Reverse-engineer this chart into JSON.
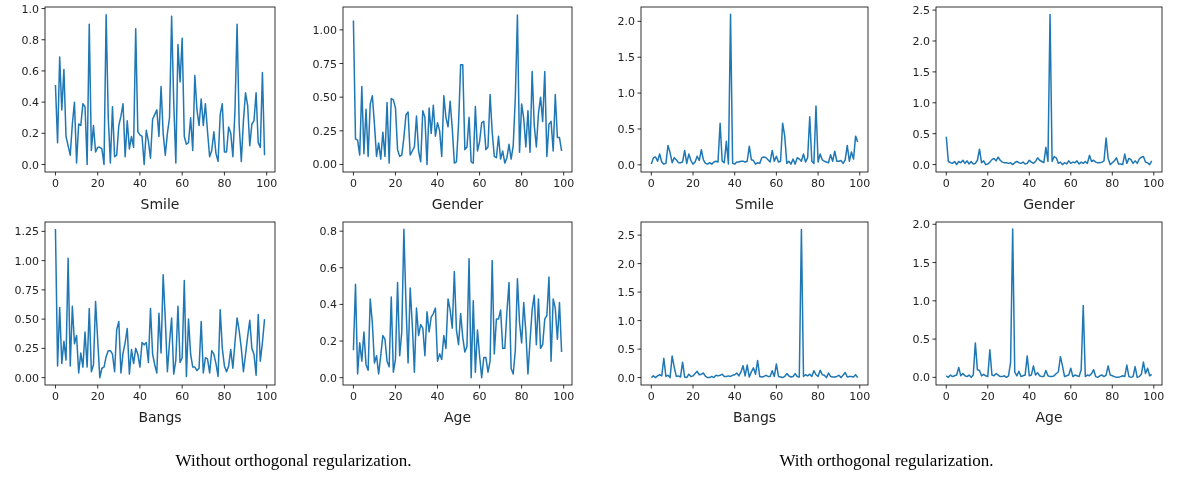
{
  "chart_data": [
    {
      "type": "line",
      "xlabel": "Smile",
      "annotations": [
        "Without orthogonal regularization."
      ],
      "xlim": [
        -4.95,
        103.95
      ],
      "xticks": [
        0,
        20,
        40,
        60,
        80,
        100
      ],
      "ylim": [
        -0.048,
        1.01
      ],
      "yticks": [
        {
          "value": 0,
          "label": "0.0"
        },
        {
          "value": 0.2,
          "label": "0.2"
        },
        {
          "value": 0.4,
          "label": "0.4"
        },
        {
          "value": 0.6,
          "label": "0.6"
        },
        {
          "value": 0.8,
          "label": "0.8"
        },
        {
          "value": 1,
          "label": "1.0"
        }
      ],
      "x": [
        0,
        1,
        2,
        3,
        4,
        5,
        6,
        7,
        8,
        9,
        10,
        11,
        12,
        13,
        14,
        15,
        16,
        17,
        18,
        19,
        20,
        21,
        22,
        23,
        24,
        25,
        26,
        27,
        28,
        29,
        30,
        31,
        32,
        33,
        34,
        35,
        36,
        37,
        38,
        39,
        40,
        41,
        42,
        43,
        44,
        45,
        46,
        47,
        48,
        49,
        50,
        51,
        52,
        53,
        54,
        55,
        56,
        57,
        58,
        59,
        60,
        61,
        62,
        63,
        64,
        65,
        66,
        67,
        68,
        69,
        70,
        71,
        72,
        73,
        74,
        75,
        76,
        77,
        78,
        79,
        80,
        81,
        82,
        83,
        84,
        85,
        86,
        87,
        88,
        89,
        90,
        91,
        92,
        93,
        94,
        95,
        96,
        97,
        98,
        99
      ],
      "series": [
        {
          "color": "#1f77b4",
          "values": [
            0.51,
            0.14,
            0.69,
            0.35,
            0.61,
            0.18,
            0.12,
            0.06,
            0.26,
            0.4,
            0.01,
            0.26,
            0.25,
            0.39,
            0.37,
            0.0,
            0.9,
            0.09,
            0.25,
            0.08,
            0.11,
            0.11,
            0.1,
            0.0,
            0.96,
            0.3,
            0.01,
            0.37,
            0.05,
            0.06,
            0.25,
            0.31,
            0.39,
            0.05,
            0.28,
            0.1,
            0.18,
            0.11,
            0.87,
            0.21,
            0.19,
            0.18,
            0.0,
            0.22,
            0.15,
            0.04,
            0.29,
            0.32,
            0.35,
            0.18,
            0.5,
            0.2,
            0.06,
            0.2,
            0.3,
            0.95,
            0.4,
            0.01,
            0.77,
            0.53,
            0.81,
            0.18,
            0.13,
            0.14,
            0.3,
            0.09,
            0.57,
            0.35,
            0.25,
            0.42,
            0.25,
            0.39,
            0.21,
            0.05,
            0.09,
            0.21,
            0.07,
            0.02,
            0.32,
            0.39,
            0.08,
            0.08,
            0.24,
            0.2,
            0.05,
            0.35,
            0.9,
            0.25,
            0.02,
            0.28,
            0.46,
            0.38,
            0.12,
            0.26,
            0.28,
            0.46,
            0.14,
            0.11,
            0.59,
            0.06
          ]
        }
      ]
    },
    {
      "type": "line",
      "xlabel": "Gender",
      "xlim": [
        -4.95,
        103.95
      ],
      "xticks": [
        0,
        20,
        40,
        60,
        80,
        100
      ],
      "ylim": [
        -0.056,
        1.17
      ],
      "yticks": [
        {
          "value": 0,
          "label": "0.00"
        },
        {
          "value": 0.25,
          "label": "0.25"
        },
        {
          "value": 0.5,
          "label": "0.50"
        },
        {
          "value": 0.75,
          "label": "0.75"
        },
        {
          "value": 1,
          "label": "1.00"
        }
      ],
      "x": [
        0,
        1,
        2,
        3,
        4,
        5,
        6,
        7,
        8,
        9,
        10,
        11,
        12,
        13,
        14,
        15,
        16,
        17,
        18,
        19,
        20,
        21,
        22,
        23,
        24,
        25,
        26,
        27,
        28,
        29,
        30,
        31,
        32,
        33,
        34,
        35,
        36,
        37,
        38,
        39,
        40,
        41,
        42,
        43,
        44,
        45,
        46,
        47,
        48,
        49,
        50,
        51,
        52,
        53,
        54,
        55,
        56,
        57,
        58,
        59,
        60,
        61,
        62,
        63,
        64,
        65,
        66,
        67,
        68,
        69,
        70,
        71,
        72,
        73,
        74,
        75,
        76,
        77,
        78,
        79,
        80,
        81,
        82,
        83,
        84,
        85,
        86,
        87,
        88,
        89,
        90,
        91,
        92,
        93,
        94,
        95,
        96,
        97,
        98,
        99
      ],
      "series": [
        {
          "color": "#1f77b4",
          "values": [
            1.07,
            0.19,
            0.18,
            0.07,
            0.58,
            0.08,
            0.41,
            0.06,
            0.45,
            0.51,
            0.3,
            0.06,
            0.16,
            0.04,
            0.24,
            0.06,
            0.46,
            0.01,
            0.49,
            0.48,
            0.42,
            0.11,
            0.06,
            0.07,
            0.2,
            0.37,
            0.39,
            0.07,
            0.1,
            0.13,
            0.36,
            0.1,
            0.02,
            0.4,
            0.35,
            0.0,
            0.42,
            0.23,
            0.44,
            0.21,
            0.31,
            0.25,
            0.06,
            0.51,
            0.35,
            0.28,
            0.47,
            0.27,
            0.01,
            0.02,
            0.3,
            0.74,
            0.74,
            0.11,
            0.13,
            0.35,
            0.02,
            0.01,
            0.43,
            0.1,
            0.17,
            0.31,
            0.32,
            0.11,
            0.13,
            0.52,
            0.24,
            0.06,
            0.05,
            0.21,
            0.04,
            0.1,
            0.01,
            0.05,
            0.15,
            0.04,
            0.14,
            0.5,
            1.11,
            0.09,
            0.45,
            0.34,
            0.13,
            0.4,
            0.09,
            0.69,
            0.29,
            0.13,
            0.38,
            0.5,
            0.32,
            0.69,
            0.06,
            0.3,
            0.32,
            0.1,
            0.52,
            0.2,
            0.2,
            0.1
          ]
        }
      ]
    },
    {
      "type": "line",
      "xlabel": "Bangs",
      "xlim": [
        -4.95,
        103.95
      ],
      "xticks": [
        0,
        20,
        40,
        60,
        80,
        100
      ],
      "ylim": [
        -0.063,
        1.33
      ],
      "yticks": [
        {
          "value": 0,
          "label": "0.00"
        },
        {
          "value": 0.25,
          "label": "0.25"
        },
        {
          "value": 0.5,
          "label": "0.50"
        },
        {
          "value": 0.75,
          "label": "0.75"
        },
        {
          "value": 1,
          "label": "1.00"
        },
        {
          "value": 1.25,
          "label": "1.25"
        }
      ],
      "x": [
        0,
        1,
        2,
        3,
        4,
        5,
        6,
        7,
        8,
        9,
        10,
        11,
        12,
        13,
        14,
        15,
        16,
        17,
        18,
        19,
        20,
        21,
        22,
        23,
        24,
        25,
        26,
        27,
        28,
        29,
        30,
        31,
        32,
        33,
        34,
        35,
        36,
        37,
        38,
        39,
        40,
        41,
        42,
        43,
        44,
        45,
        46,
        47,
        48,
        49,
        50,
        51,
        52,
        53,
        54,
        55,
        56,
        57,
        58,
        59,
        60,
        61,
        62,
        63,
        64,
        65,
        66,
        67,
        68,
        69,
        70,
        71,
        72,
        73,
        74,
        75,
        76,
        77,
        78,
        79,
        80,
        81,
        82,
        83,
        84,
        85,
        86,
        87,
        88,
        89,
        90,
        91,
        92,
        93,
        94,
        95,
        96,
        97,
        98,
        99
      ],
      "series": [
        {
          "color": "#1f77b4",
          "values": [
            1.27,
            0.1,
            0.6,
            0.12,
            0.31,
            0.15,
            1.02,
            0.1,
            0.61,
            0.29,
            0.36,
            0.04,
            0.21,
            0.09,
            0.39,
            0.09,
            0.59,
            0.05,
            0.11,
            0.65,
            0.32,
            0.0,
            0.08,
            0.09,
            0.18,
            0.23,
            0.23,
            0.2,
            0.05,
            0.41,
            0.48,
            0.04,
            0.21,
            0.3,
            0.42,
            0.03,
            0.24,
            0.12,
            0.25,
            0.2,
            0.09,
            0.3,
            0.28,
            0.3,
            0.13,
            0.59,
            0.2,
            0.11,
            0.04,
            0.55,
            0.21,
            0.88,
            0.5,
            0.05,
            0.3,
            0.51,
            0.03,
            0.15,
            0.61,
            0.13,
            0.17,
            0.83,
            0.01,
            0.5,
            0.2,
            0.09,
            0.09,
            0.06,
            0.08,
            0.48,
            0.04,
            0.17,
            0.16,
            0.04,
            0.23,
            0.2,
            0.12,
            0.01,
            0.58,
            0.25,
            0.1,
            0.05,
            0.1,
            0.24,
            0.08,
            0.3,
            0.51,
            0.4,
            0.25,
            0.05,
            0.2,
            0.35,
            0.49,
            0.25,
            0.2,
            0.02,
            0.54,
            0.14,
            0.3,
            0.5
          ]
        }
      ]
    },
    {
      "type": "line",
      "xlabel": "Age",
      "xlim": [
        -4.95,
        103.95
      ],
      "xticks": [
        0,
        20,
        40,
        60,
        80,
        100
      ],
      "ylim": [
        -0.04,
        0.85
      ],
      "yticks": [
        {
          "value": 0,
          "label": "0.0"
        },
        {
          "value": 0.2,
          "label": "0.2"
        },
        {
          "value": 0.4,
          "label": "0.4"
        },
        {
          "value": 0.6,
          "label": "0.6"
        },
        {
          "value": 0.8,
          "label": "0.8"
        }
      ],
      "x": [
        0,
        1,
        2,
        3,
        4,
        5,
        6,
        7,
        8,
        9,
        10,
        11,
        12,
        13,
        14,
        15,
        16,
        17,
        18,
        19,
        20,
        21,
        22,
        23,
        24,
        25,
        26,
        27,
        28,
        29,
        30,
        31,
        32,
        33,
        34,
        35,
        36,
        37,
        38,
        39,
        40,
        41,
        42,
        43,
        44,
        45,
        46,
        47,
        48,
        49,
        50,
        51,
        52,
        53,
        54,
        55,
        56,
        57,
        58,
        59,
        60,
        61,
        62,
        63,
        64,
        65,
        66,
        67,
        68,
        69,
        70,
        71,
        72,
        73,
        74,
        75,
        76,
        77,
        78,
        79,
        80,
        81,
        82,
        83,
        84,
        85,
        86,
        87,
        88,
        89,
        90,
        91,
        92,
        93,
        94,
        95,
        96,
        97,
        98,
        99
      ],
      "series": [
        {
          "color": "#1f77b4",
          "values": [
            0.15,
            0.51,
            0.02,
            0.19,
            0.09,
            0.25,
            0.07,
            0.04,
            0.43,
            0.3,
            0.08,
            0.12,
            0.02,
            0.12,
            0.23,
            0.21,
            0.09,
            0.06,
            0.44,
            0.03,
            0.1,
            0.52,
            0.12,
            0.25,
            0.81,
            0.4,
            0.08,
            0.49,
            0.29,
            0.03,
            0.38,
            0.23,
            0.29,
            0.27,
            0.12,
            0.36,
            0.25,
            0.33,
            0.35,
            0.38,
            0.09,
            0.13,
            0.1,
            0.23,
            0.16,
            0.43,
            0.37,
            0.27,
            0.58,
            0.26,
            0.18,
            0.35,
            0.22,
            0.14,
            0.17,
            0.65,
            0.0,
            0.42,
            0.03,
            0.26,
            0.12,
            0.0,
            0.11,
            0.11,
            0.03,
            0.09,
            0.64,
            0.13,
            0.32,
            0.32,
            0.37,
            0.16,
            0.16,
            0.36,
            0.52,
            0.05,
            0.02,
            0.15,
            0.54,
            0.3,
            0.19,
            0.41,
            0.25,
            0.02,
            0.2,
            0.37,
            0.45,
            0.18,
            0.43,
            0.16,
            0.18,
            0.32,
            0.34,
            0.55,
            0.09,
            0.43,
            0.38,
            0.21,
            0.41,
            0.14
          ]
        }
      ]
    },
    {
      "type": "line",
      "xlabel": "Smile",
      "annotations": [
        "With orthogonal regularization."
      ],
      "xlim": [
        -4.95,
        103.95
      ],
      "xticks": [
        0,
        20,
        40,
        60,
        80,
        100
      ],
      "ylim": [
        -0.1,
        2.2
      ],
      "yticks": [
        {
          "value": 0,
          "label": "0.0"
        },
        {
          "value": 0.5,
          "label": "0.5"
        },
        {
          "value": 1,
          "label": "1.0"
        },
        {
          "value": 1.5,
          "label": "1.5"
        },
        {
          "value": 2,
          "label": "2.0"
        }
      ],
      "x": [
        0,
        1,
        2,
        3,
        4,
        5,
        6,
        7,
        8,
        9,
        10,
        11,
        12,
        13,
        14,
        15,
        16,
        17,
        18,
        19,
        20,
        21,
        22,
        23,
        24,
        25,
        26,
        27,
        28,
        29,
        30,
        31,
        32,
        33,
        34,
        35,
        36,
        37,
        38,
        39,
        40,
        41,
        42,
        43,
        44,
        45,
        46,
        47,
        48,
        49,
        50,
        51,
        52,
        53,
        54,
        55,
        56,
        57,
        58,
        59,
        60,
        61,
        62,
        63,
        64,
        65,
        66,
        67,
        68,
        69,
        70,
        71,
        72,
        73,
        74,
        75,
        76,
        77,
        78,
        79,
        80,
        81,
        82,
        83,
        84,
        85,
        86,
        87,
        88,
        89,
        90,
        91,
        92,
        93,
        94,
        95,
        96,
        97,
        98,
        99
      ],
      "series": [
        {
          "color": "#1f77b4",
          "values": [
            0.01,
            0.1,
            0.11,
            0.05,
            0.15,
            0.04,
            0.01,
            0.02,
            0.27,
            0.17,
            0.03,
            0.1,
            0.07,
            0.03,
            0.03,
            0.04,
            0.2,
            0.02,
            0.15,
            0.06,
            0.01,
            0.04,
            0.12,
            0.06,
            0.21,
            0.07,
            0.02,
            0.01,
            0.03,
            0.01,
            0.04,
            0.05,
            0.04,
            0.58,
            0.05,
            0.03,
            0.33,
            0.01,
            2.1,
            0.02,
            0.01,
            0.04,
            0.04,
            0.05,
            0.05,
            0.04,
            0.05,
            0.26,
            0.07,
            0.06,
            0.01,
            0.03,
            0.02,
            0.1,
            0.11,
            0.1,
            0.07,
            0.04,
            0.2,
            0.05,
            0.12,
            0.04,
            0.05,
            0.58,
            0.4,
            0.02,
            0.05,
            0.01,
            0.08,
            0.01,
            0.1,
            0.08,
            0.05,
            0.15,
            0.04,
            0.1,
            0.67,
            0.05,
            0.02,
            0.82,
            0.04,
            0.15,
            0.07,
            0.05,
            0.04,
            0.03,
            0.14,
            0.05,
            0.19,
            0.05,
            0.05,
            0.06,
            0.02,
            0.07,
            0.27,
            0.05,
            0.18,
            0.08,
            0.4,
            0.32
          ]
        }
      ]
    },
    {
      "type": "line",
      "xlabel": "Gender",
      "xlim": [
        -4.95,
        103.95
      ],
      "xticks": [
        0,
        20,
        40,
        60,
        80,
        100
      ],
      "ylim": [
        -0.12,
        2.55
      ],
      "yticks": [
        {
          "value": 0,
          "label": "0.0"
        },
        {
          "value": 0.5,
          "label": "0.5"
        },
        {
          "value": 1,
          "label": "1.0"
        },
        {
          "value": 1.5,
          "label": "1.5"
        },
        {
          "value": 2,
          "label": "2.0"
        },
        {
          "value": 2.5,
          "label": "2.5"
        }
      ],
      "x": [
        0,
        1,
        2,
        3,
        4,
        5,
        6,
        7,
        8,
        9,
        10,
        11,
        12,
        13,
        14,
        15,
        16,
        17,
        18,
        19,
        20,
        21,
        22,
        23,
        24,
        25,
        26,
        27,
        28,
        29,
        30,
        31,
        32,
        33,
        34,
        35,
        36,
        37,
        38,
        39,
        40,
        41,
        42,
        43,
        44,
        45,
        46,
        47,
        48,
        49,
        50,
        51,
        52,
        53,
        54,
        55,
        56,
        57,
        58,
        59,
        60,
        61,
        62,
        63,
        64,
        65,
        66,
        67,
        68,
        69,
        70,
        71,
        72,
        73,
        74,
        75,
        76,
        77,
        78,
        79,
        80,
        81,
        82,
        83,
        84,
        85,
        86,
        87,
        88,
        89,
        90,
        91,
        92,
        93,
        94,
        95,
        96,
        97,
        98,
        99
      ],
      "series": [
        {
          "color": "#1f77b4",
          "values": [
            0.45,
            0.05,
            0.03,
            0.02,
            0.05,
            0.0,
            0.05,
            0.03,
            0.07,
            0.02,
            0.06,
            0.01,
            0.05,
            0.01,
            0.02,
            0.07,
            0.25,
            0.03,
            0.06,
            0.0,
            0.01,
            0.04,
            0.08,
            0.1,
            0.06,
            0.12,
            0.07,
            0.04,
            0.03,
            0.03,
            0.02,
            0.03,
            0.0,
            0.03,
            0.05,
            0.03,
            0.02,
            0.04,
            0.01,
            0.02,
            0.07,
            0.04,
            0.02,
            0.05,
            0.11,
            0.07,
            0.05,
            0.03,
            0.28,
            0.05,
            2.43,
            0.05,
            0.13,
            0.11,
            0.02,
            0.04,
            0.0,
            0.03,
            0.01,
            0.06,
            0.02,
            0.04,
            0.03,
            0.06,
            0.01,
            0.04,
            0.02,
            0.05,
            0.02,
            0.15,
            0.05,
            0.07,
            0.04,
            0.03,
            0.03,
            0.04,
            0.06,
            0.43,
            0.1,
            0.0,
            0.03,
            0.06,
            0.11,
            0.01,
            0.01,
            0.0,
            0.17,
            0.02,
            0.1,
            0.08,
            0.02,
            0.06,
            0.02,
            0.09,
            0.12,
            0.13,
            0.04,
            0.03,
            0.0,
            0.06
          ]
        }
      ]
    },
    {
      "type": "line",
      "xlabel": "Bangs",
      "xlim": [
        -4.95,
        103.95
      ],
      "xticks": [
        0,
        20,
        40,
        60,
        80,
        100
      ],
      "ylim": [
        -0.13,
        2.73
      ],
      "yticks": [
        {
          "value": 0,
          "label": "0.0"
        },
        {
          "value": 0.5,
          "label": "0.5"
        },
        {
          "value": 1,
          "label": "1.0"
        },
        {
          "value": 1.5,
          "label": "1.5"
        },
        {
          "value": 2,
          "label": "2.0"
        },
        {
          "value": 2.5,
          "label": "2.5"
        }
      ],
      "x": [
        0,
        1,
        2,
        3,
        4,
        5,
        6,
        7,
        8,
        9,
        10,
        11,
        12,
        13,
        14,
        15,
        16,
        17,
        18,
        19,
        20,
        21,
        22,
        23,
        24,
        25,
        26,
        27,
        28,
        29,
        30,
        31,
        32,
        33,
        34,
        35,
        36,
        37,
        38,
        39,
        40,
        41,
        42,
        43,
        44,
        45,
        46,
        47,
        48,
        49,
        50,
        51,
        52,
        53,
        54,
        55,
        56,
        57,
        58,
        59,
        60,
        61,
        62,
        63,
        64,
        65,
        66,
        67,
        68,
        69,
        70,
        71,
        72,
        73,
        74,
        75,
        76,
        77,
        78,
        79,
        80,
        81,
        82,
        83,
        84,
        85,
        86,
        87,
        88,
        89,
        90,
        91,
        92,
        93,
        94,
        95,
        96,
        97,
        98,
        99
      ],
      "series": [
        {
          "color": "#1f77b4",
          "values": [
            0.0,
            0.03,
            0.0,
            0.03,
            0.05,
            0.03,
            0.34,
            0.02,
            0.04,
            0.0,
            0.38,
            0.18,
            0.02,
            0.03,
            0.01,
            0.27,
            0.01,
            0.0,
            0.06,
            0.02,
            0.03,
            0.07,
            0.11,
            0.05,
            0.06,
            0.08,
            0.02,
            0.0,
            0.0,
            0.02,
            0.0,
            0.04,
            0.03,
            0.04,
            0.06,
            0.02,
            0.02,
            0.03,
            0.02,
            0.04,
            0.05,
            0.08,
            0.03,
            0.1,
            0.21,
            0.03,
            0.22,
            0.01,
            0.1,
            0.17,
            0.06,
            0.3,
            0.02,
            0.01,
            0.02,
            0.04,
            0.02,
            0.02,
            0.12,
            0.02,
            0.24,
            0.02,
            0.01,
            0.0,
            0.02,
            0.07,
            0.03,
            0.01,
            0.02,
            0.07,
            0.02,
            0.01,
            2.6,
            0.02,
            0.05,
            0.03,
            0.06,
            0.02,
            0.12,
            0.05,
            0.02,
            0.13,
            0.05,
            0.04,
            0.0,
            0.08,
            0.02,
            0.01,
            0.01,
            0.02,
            0.04,
            0.0,
            0.04,
            0.09,
            0.01,
            0.02,
            0.02,
            0.01,
            0.05,
            0.0
          ]
        }
      ]
    },
    {
      "type": "line",
      "xlabel": "Age",
      "xlim": [
        -4.95,
        103.95
      ],
      "xticks": [
        0,
        20,
        40,
        60,
        80,
        100
      ],
      "ylim": [
        -0.1,
        2.03
      ],
      "yticks": [
        {
          "value": 0,
          "label": "0.0"
        },
        {
          "value": 0.5,
          "label": "0.5"
        },
        {
          "value": 1,
          "label": "1.0"
        },
        {
          "value": 1.5,
          "label": "1.5"
        },
        {
          "value": 2,
          "label": "2.0"
        }
      ],
      "x": [
        0,
        1,
        2,
        3,
        4,
        5,
        6,
        7,
        8,
        9,
        10,
        11,
        12,
        13,
        14,
        15,
        16,
        17,
        18,
        19,
        20,
        21,
        22,
        23,
        24,
        25,
        26,
        27,
        28,
        29,
        30,
        31,
        32,
        33,
        34,
        35,
        36,
        37,
        38,
        39,
        40,
        41,
        42,
        43,
        44,
        45,
        46,
        47,
        48,
        49,
        50,
        51,
        52,
        53,
        54,
        55,
        56,
        57,
        58,
        59,
        60,
        61,
        62,
        63,
        64,
        65,
        66,
        67,
        68,
        69,
        70,
        71,
        72,
        73,
        74,
        75,
        76,
        77,
        78,
        79,
        80,
        81,
        82,
        83,
        84,
        85,
        86,
        87,
        88,
        89,
        90,
        91,
        92,
        93,
        94,
        95,
        96,
        97,
        98,
        99
      ],
      "series": [
        {
          "color": "#1f77b4",
          "values": [
            0.02,
            0.0,
            0.03,
            0.01,
            0.02,
            0.03,
            0.13,
            0.02,
            0.05,
            0.02,
            0.01,
            0.03,
            0.0,
            0.03,
            0.45,
            0.1,
            0.09,
            0.02,
            0.04,
            0.02,
            0.01,
            0.36,
            0.03,
            0.02,
            0.05,
            0.03,
            0.01,
            0.01,
            0.02,
            0.0,
            0.02,
            0.2,
            1.94,
            0.07,
            0.02,
            0.08,
            0.01,
            0.02,
            0.03,
            0.28,
            0.02,
            0.03,
            0.15,
            0.03,
            0.06,
            0.02,
            0.01,
            0.01,
            0.09,
            0.02,
            0.01,
            0.01,
            0.02,
            0.05,
            0.07,
            0.27,
            0.15,
            0.01,
            0.02,
            0.03,
            0.12,
            0.01,
            0.03,
            0.02,
            0.01,
            0.1,
            0.94,
            0.01,
            0.03,
            0.02,
            0.05,
            0.1,
            0.01,
            0.0,
            0.02,
            0.03,
            0.01,
            0.03,
            0.15,
            0.03,
            0.02,
            0.01,
            0.0,
            0.0,
            0.01,
            0.02,
            0.01,
            0.16,
            0.01,
            0.0,
            0.01,
            0.14,
            0.0,
            0.01,
            0.04,
            0.2,
            0.05,
            0.12,
            0.02,
            0.04
          ]
        }
      ]
    }
  ]
}
